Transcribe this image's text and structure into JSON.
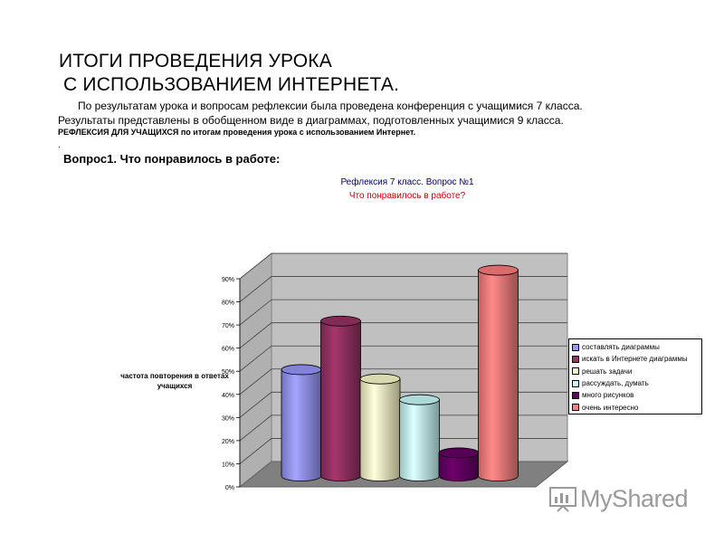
{
  "header": {
    "title_line1": "ИТОГИ ПРОВЕДЕНИЯ  УРОКА",
    "title_line2": "С ИСПОЛЬЗОВАНИЕМ ИНТЕРНЕТА.",
    "para1": "По результатам урока и вопросам рефлексии была проведена  конференция с учащимися 7 класса.",
    "para2": "Результаты представлены в обобщенном виде в диаграммах, подготовленных учащимися 9 класса.",
    "para3": "РЕФЛЕКСИЯ  ДЛЯ  УЧАЩИХСЯ   по итогам проведения урока с использованием Интернет.",
    "dot": ".",
    "question": "Вопрос1. Что понравилось в работе:"
  },
  "chart_data": {
    "type": "bar",
    "title": "Рефлексия 7 класс. Вопрос №1",
    "subtitle": "Что понравилось в работе?",
    "ylabel": "частота повторения в ответах учащихся",
    "ylim": [
      0,
      90
    ],
    "yticks": [
      "0%",
      "10%",
      "20%",
      "30%",
      "40%",
      "50%",
      "60%",
      "70%",
      "80%",
      "90%"
    ],
    "grid": true,
    "legend_position": "right",
    "series": [
      {
        "name": "составлять диаграммы",
        "value": 46,
        "color": "#9999ff"
      },
      {
        "name": "искать в Интернете диаграммы",
        "value": 67,
        "color": "#993366"
      },
      {
        "name": "решать задачи",
        "value": 42,
        "color": "#ffffcc"
      },
      {
        "name": "рассуждать, думать",
        "value": 33,
        "color": "#ccffff"
      },
      {
        "name": "много рисунков",
        "value": 10,
        "color": "#660066"
      },
      {
        "name": "очень интересно",
        "value": 89,
        "color": "#ff8080"
      }
    ]
  },
  "watermark": {
    "text": "MyShared"
  }
}
